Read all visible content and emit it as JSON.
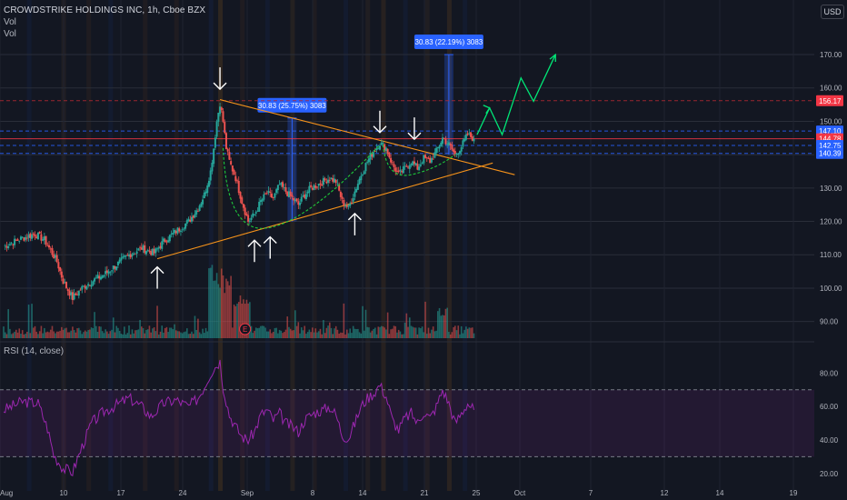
{
  "header": {
    "symbol_line": "CROWDSTRIKE HOLDINGS INC, 1h, Cboe BZX",
    "vol_1": "Vol",
    "vol_2": "Vol",
    "rsi_label": "RSI (14, close)",
    "currency": "USD"
  },
  "colors": {
    "background": "#131722",
    "up": "#26a69a",
    "down": "#ef5350",
    "trendline": "#f7931a",
    "cup_curve": "#1ec83a",
    "projection": "#00e676",
    "rsi_line": "#9c27b0",
    "measure_box": "#2962ff",
    "arrow": "#ffffff",
    "price_tag_blue": "#2962ff",
    "price_tag_red": "#f23645",
    "resistance_dashed_red": "#b22833"
  },
  "chart_data": [
    {
      "type": "candlestick",
      "title": "CROWDSTRIKE HOLDINGS INC, 1h, Cboe BZX",
      "x_tick_labels": [
        "Aug",
        "10",
        "17",
        "24",
        "Sep",
        "8",
        "14",
        "21",
        "25",
        "Oct",
        "7",
        "12",
        "14",
        "19"
      ],
      "y_ticks": [
        90.0,
        100.0,
        110.0,
        120.0,
        130.0,
        140.0,
        150.0,
        160.0,
        170.0
      ],
      "y_tick_labels": [
        "90.00",
        "100.00",
        "110.00",
        "120.00",
        "130.00",
        "140.00",
        "150.00",
        "160.00",
        "170.00"
      ],
      "ylim": [
        85,
        182
      ],
      "close_path": [
        {
          "x": 0,
          "y": 112.5
        },
        {
          "x": 6,
          "y": 115
        },
        {
          "x": 10,
          "y": 116.2
        },
        {
          "x": 13,
          "y": 114.5
        },
        {
          "x": 17,
          "y": 108
        },
        {
          "x": 19,
          "y": 102
        },
        {
          "x": 22,
          "y": 97
        },
        {
          "x": 25,
          "y": 100
        },
        {
          "x": 28,
          "y": 102
        },
        {
          "x": 32,
          "y": 104
        },
        {
          "x": 36,
          "y": 107
        },
        {
          "x": 40,
          "y": 110
        },
        {
          "x": 44,
          "y": 112
        },
        {
          "x": 48,
          "y": 110.5
        },
        {
          "x": 51,
          "y": 114
        },
        {
          "x": 55,
          "y": 117
        },
        {
          "x": 59,
          "y": 120
        },
        {
          "x": 62,
          "y": 124
        },
        {
          "x": 64,
          "y": 128
        },
        {
          "x": 66,
          "y": 135
        },
        {
          "x": 67,
          "y": 142
        },
        {
          "x": 68,
          "y": 150
        },
        {
          "x": 69,
          "y": 155.5
        },
        {
          "x": 70,
          "y": 150
        },
        {
          "x": 71,
          "y": 142
        },
        {
          "x": 72,
          "y": 138
        },
        {
          "x": 74,
          "y": 133
        },
        {
          "x": 76,
          "y": 126
        },
        {
          "x": 78,
          "y": 120
        },
        {
          "x": 80,
          "y": 122
        },
        {
          "x": 82,
          "y": 126
        },
        {
          "x": 84,
          "y": 128.5
        },
        {
          "x": 86,
          "y": 127
        },
        {
          "x": 88,
          "y": 131
        },
        {
          "x": 90,
          "y": 129
        },
        {
          "x": 92,
          "y": 127
        },
        {
          "x": 94,
          "y": 125
        },
        {
          "x": 96,
          "y": 128
        },
        {
          "x": 98,
          "y": 130
        },
        {
          "x": 100,
          "y": 131
        },
        {
          "x": 102,
          "y": 132
        },
        {
          "x": 104,
          "y": 133
        },
        {
          "x": 106,
          "y": 132
        },
        {
          "x": 108,
          "y": 126
        },
        {
          "x": 110,
          "y": 124
        },
        {
          "x": 112,
          "y": 129
        },
        {
          "x": 114,
          "y": 134
        },
        {
          "x": 116,
          "y": 138
        },
        {
          "x": 118,
          "y": 141
        },
        {
          "x": 120,
          "y": 143.5
        },
        {
          "x": 122,
          "y": 142
        },
        {
          "x": 124,
          "y": 137
        },
        {
          "x": 126,
          "y": 134
        },
        {
          "x": 128,
          "y": 136
        },
        {
          "x": 130,
          "y": 138
        },
        {
          "x": 132,
          "y": 136
        },
        {
          "x": 134,
          "y": 139
        },
        {
          "x": 136,
          "y": 138
        },
        {
          "x": 138,
          "y": 141
        },
        {
          "x": 140,
          "y": 145
        },
        {
          "x": 142,
          "y": 143
        },
        {
          "x": 144,
          "y": 140
        },
        {
          "x": 146,
          "y": 142.5
        },
        {
          "x": 148,
          "y": 146
        },
        {
          "x": 150,
          "y": 144.8
        }
      ],
      "projection_path": [
        {
          "x": 151,
          "y": 146
        },
        {
          "x": 155,
          "y": 154
        },
        {
          "x": 159,
          "y": 146
        },
        {
          "x": 165,
          "y": 163
        },
        {
          "x": 169,
          "y": 156
        },
        {
          "x": 176,
          "y": 170
        }
      ],
      "trendlines": {
        "descending": [
          {
            "x": 69,
            "y": 156.5
          },
          {
            "x": 163,
            "y": 134
          }
        ],
        "ascending": [
          {
            "x": 49,
            "y": 108.8
          },
          {
            "x": 156,
            "y": 137.5
          }
        ]
      },
      "cup_curves": [
        {
          "from": {
            "x": 70,
            "y": 142
          },
          "bottom": {
            "x": 84,
            "y": 118
          },
          "to": {
            "x": 120,
            "y": 143
          }
        },
        {
          "from": {
            "x": 121,
            "y": 143
          },
          "bottom": {
            "x": 130,
            "y": 134
          },
          "to": {
            "x": 144,
            "y": 140
          }
        }
      ],
      "measurements": [
        {
          "label": "30.83 (25.75%) 3083",
          "x": 92,
          "from": 120,
          "to": 151
        },
        {
          "label": "30.83 (22.19%) 3083",
          "x": 142,
          "from": 140,
          "to": 170
        }
      ],
      "down_arrows_at": [
        {
          "x": 69,
          "y": 158
        },
        {
          "x": 120,
          "y": 145
        },
        {
          "x": 131,
          "y": 143
        }
      ],
      "up_arrows_at": [
        {
          "x": 49,
          "y": 108
        },
        {
          "x": 80,
          "y": 116
        },
        {
          "x": 85,
          "y": 117
        },
        {
          "x": 112,
          "y": 124
        }
      ],
      "price_levels": [
        {
          "value": 156.17,
          "label": "156.17",
          "style": "dashed",
          "color": "#b22833",
          "tag": "#f23645"
        },
        {
          "value": 147.1,
          "label": "147.10",
          "style": "dashed",
          "color": "#2962ff",
          "tag": "#2962ff"
        },
        {
          "value": 144.78,
          "label": "144.78",
          "style": "solid",
          "color": "#f23645",
          "tag": "#f23645"
        },
        {
          "value": 142.75,
          "label": "142.75",
          "style": "dashed",
          "color": "#2962ff",
          "tag": "#2962ff"
        },
        {
          "value": 140.39,
          "label": "140.39",
          "style": "dashed",
          "color": "#2962ff",
          "tag": "#2962ff"
        }
      ],
      "earnings_marker": {
        "x": 77,
        "label": "E"
      }
    },
    {
      "type": "line",
      "title": "RSI (14, close)",
      "y_ticks": [
        20.0,
        40.0,
        60.0,
        80.0
      ],
      "y_tick_labels": [
        "20.00",
        "40.00",
        "60.00",
        "80.00"
      ],
      "ylim": [
        15,
        90
      ],
      "band": [
        30,
        70
      ],
      "series": [
        {
          "values": [
            {
              "x": 0,
              "y": 58
            },
            {
              "x": 6,
              "y": 63
            },
            {
              "x": 11,
              "y": 62
            },
            {
              "x": 14,
              "y": 47
            },
            {
              "x": 16,
              "y": 31
            },
            {
              "x": 19,
              "y": 23
            },
            {
              "x": 22,
              "y": 21
            },
            {
              "x": 25,
              "y": 36
            },
            {
              "x": 28,
              "y": 50
            },
            {
              "x": 32,
              "y": 57
            },
            {
              "x": 36,
              "y": 61
            },
            {
              "x": 40,
              "y": 65
            },
            {
              "x": 44,
              "y": 60
            },
            {
              "x": 47,
              "y": 54
            },
            {
              "x": 51,
              "y": 62
            },
            {
              "x": 55,
              "y": 64
            },
            {
              "x": 59,
              "y": 60
            },
            {
              "x": 62,
              "y": 65
            },
            {
              "x": 64,
              "y": 72
            },
            {
              "x": 66,
              "y": 80
            },
            {
              "x": 68,
              "y": 85
            },
            {
              "x": 69,
              "y": 87
            },
            {
              "x": 70,
              "y": 72
            },
            {
              "x": 72,
              "y": 55
            },
            {
              "x": 74,
              "y": 48
            },
            {
              "x": 76,
              "y": 42
            },
            {
              "x": 78,
              "y": 40
            },
            {
              "x": 80,
              "y": 45
            },
            {
              "x": 82,
              "y": 55
            },
            {
              "x": 84,
              "y": 58
            },
            {
              "x": 86,
              "y": 52
            },
            {
              "x": 88,
              "y": 56
            },
            {
              "x": 90,
              "y": 50
            },
            {
              "x": 92,
              "y": 48
            },
            {
              "x": 94,
              "y": 45
            },
            {
              "x": 96,
              "y": 52
            },
            {
              "x": 98,
              "y": 55
            },
            {
              "x": 100,
              "y": 57
            },
            {
              "x": 102,
              "y": 58
            },
            {
              "x": 104,
              "y": 60
            },
            {
              "x": 106,
              "y": 55
            },
            {
              "x": 108,
              "y": 43
            },
            {
              "x": 110,
              "y": 41
            },
            {
              "x": 112,
              "y": 50
            },
            {
              "x": 114,
              "y": 60
            },
            {
              "x": 116,
              "y": 65
            },
            {
              "x": 118,
              "y": 68
            },
            {
              "x": 120,
              "y": 73
            },
            {
              "x": 122,
              "y": 66
            },
            {
              "x": 124,
              "y": 52
            },
            {
              "x": 126,
              "y": 46
            },
            {
              "x": 128,
              "y": 53
            },
            {
              "x": 130,
              "y": 56
            },
            {
              "x": 132,
              "y": 50
            },
            {
              "x": 134,
              "y": 57
            },
            {
              "x": 136,
              "y": 53
            },
            {
              "x": 138,
              "y": 60
            },
            {
              "x": 140,
              "y": 70
            },
            {
              "x": 142,
              "y": 62
            },
            {
              "x": 144,
              "y": 50
            },
            {
              "x": 146,
              "y": 56
            },
            {
              "x": 148,
              "y": 62
            },
            {
              "x": 150,
              "y": 58
            }
          ]
        }
      ]
    }
  ]
}
